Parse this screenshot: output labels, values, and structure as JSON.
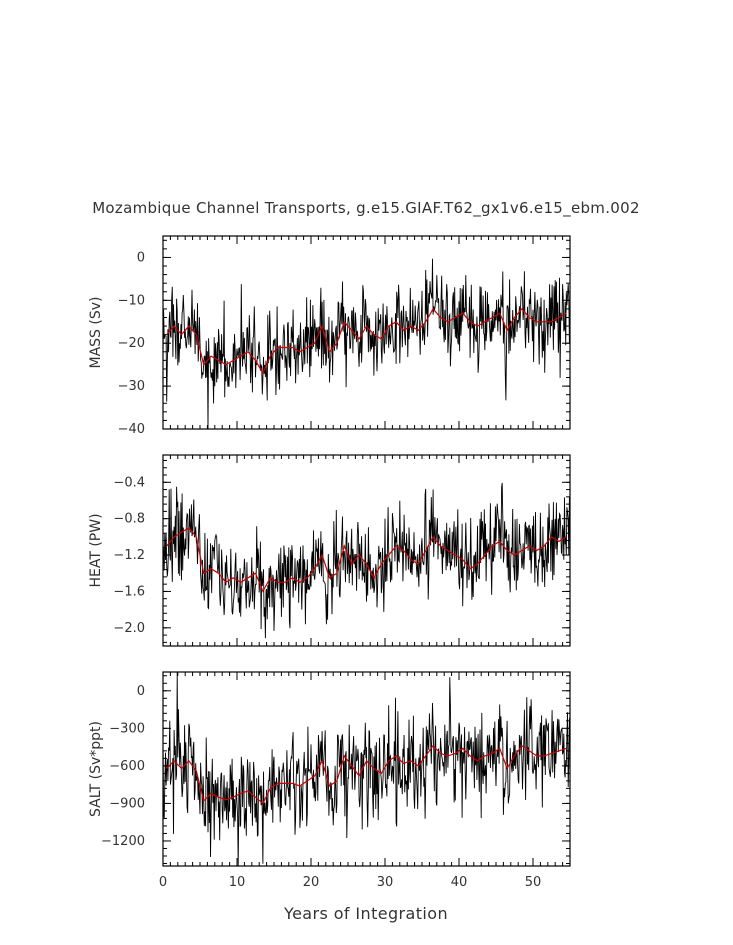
{
  "chart_data": {
    "type": "line",
    "title": "Mozambique Channel Transports, g.e15.GIAF.T62_gx1v6.e15_ebm.002",
    "xlabel": "Years of Integration",
    "xlim": [
      0,
      55
    ],
    "xticks": [
      0,
      10,
      20,
      30,
      40,
      50
    ],
    "series_colors": {
      "monthly": "#000000",
      "annual": "#cc0000"
    },
    "panels": [
      {
        "ylabel": "MASS (Sv)",
        "ylim": [
          -40,
          5
        ],
        "yticks": [
          0,
          -10,
          -20,
          -30,
          -40
        ],
        "yticklabels": [
          "0",
          "−10",
          "−20",
          "−30",
          "−40"
        ],
        "noise": 6,
        "annual": [
          -18,
          -16,
          -18,
          -16,
          -18,
          -25,
          -23,
          -24,
          -25,
          -24,
          -23,
          -22,
          -24,
          -27,
          -23,
          -21,
          -21,
          -21,
          -22,
          -21,
          -20,
          -16,
          -22,
          -20,
          -15,
          -17,
          -19,
          -16,
          -18,
          -19,
          -16,
          -15,
          -17,
          -16,
          -17,
          -15,
          -12,
          -14,
          -15,
          -14,
          -13,
          -15,
          -16,
          -15,
          -14,
          -13,
          -17,
          -14,
          -12,
          -14,
          -15,
          -15,
          -15,
          -14,
          -13
        ]
      },
      {
        "ylabel": "HEAT (PW)",
        "ylim": [
          -2.2,
          -0.1
        ],
        "yticks": [
          -0.4,
          -0.8,
          -1.2,
          -1.6,
          -2.0
        ],
        "yticklabels": [
          "−0.4",
          "−0.8",
          "−1.2",
          "−1.6",
          "−2.0"
        ],
        "noise": 0.28,
        "annual": [
          -1.1,
          -1.0,
          -0.95,
          -0.9,
          -1.0,
          -1.4,
          -1.35,
          -1.4,
          -1.5,
          -1.45,
          -1.5,
          -1.45,
          -1.4,
          -1.6,
          -1.45,
          -1.5,
          -1.5,
          -1.45,
          -1.5,
          -1.45,
          -1.35,
          -1.2,
          -1.45,
          -1.4,
          -1.1,
          -1.3,
          -1.2,
          -1.3,
          -1.45,
          -1.3,
          -1.2,
          -1.1,
          -1.15,
          -1.25,
          -1.3,
          -1.15,
          -1.0,
          -1.1,
          -1.15,
          -1.2,
          -1.25,
          -1.35,
          -1.3,
          -1.2,
          -1.1,
          -1.05,
          -1.15,
          -1.2,
          -1.15,
          -1.1,
          -1.15,
          -1.1,
          -1.0,
          -1.05,
          -1.0
        ]
      },
      {
        "ylabel": "SALT (Sv*ppt)",
        "ylim": [
          -1400,
          150
        ],
        "yticks": [
          0,
          -300,
          -600,
          -900,
          -1200
        ],
        "yticklabels": [
          "0",
          "−300",
          "−600",
          "−900",
          "−1200"
        ],
        "noise": 230,
        "annual": [
          -620,
          -560,
          -620,
          -560,
          -640,
          -880,
          -820,
          -850,
          -870,
          -850,
          -820,
          -800,
          -850,
          -900,
          -780,
          -740,
          -740,
          -740,
          -760,
          -720,
          -680,
          -560,
          -760,
          -720,
          -520,
          -600,
          -680,
          -560,
          -620,
          -660,
          -560,
          -520,
          -580,
          -560,
          -600,
          -520,
          -440,
          -500,
          -520,
          -500,
          -460,
          -520,
          -560,
          -520,
          -500,
          -460,
          -620,
          -520,
          -440,
          -480,
          -520,
          -520,
          -500,
          -480,
          -460
        ]
      }
    ]
  }
}
